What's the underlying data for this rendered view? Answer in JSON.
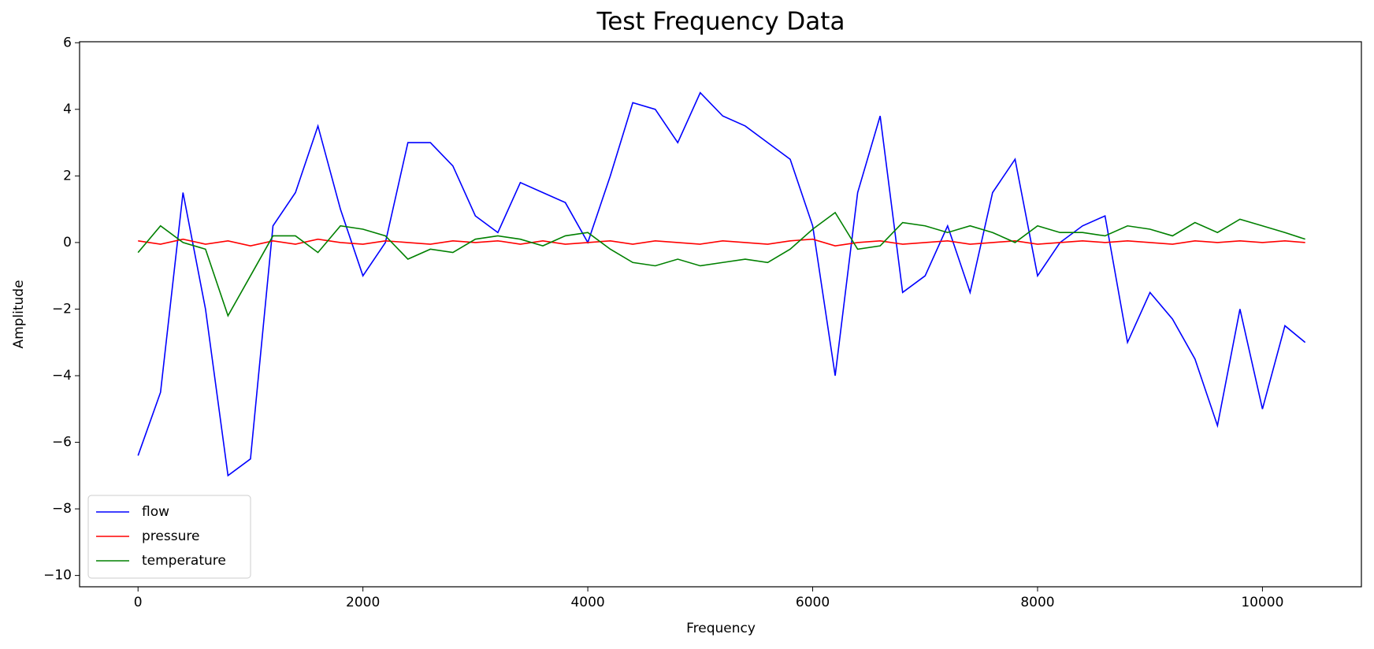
{
  "chart_data": {
    "type": "line",
    "title": "Test Frequency Data",
    "x_label": "Frequency",
    "y_label": "Amplitude",
    "x": [
      0,
      200,
      400,
      600,
      800,
      1000,
      1200,
      1400,
      1600,
      1800,
      2000,
      2200,
      2400,
      2600,
      2800,
      3000,
      3200,
      3400,
      3600,
      3800,
      4000,
      4200,
      4400,
      4600,
      4800,
      5000,
      5200,
      5400,
      5600,
      5800,
      6000,
      6200,
      6400,
      6600,
      6800,
      7000,
      7200,
      7400,
      7600,
      7800,
      8000,
      8200,
      8400,
      8600,
      8800,
      9000,
      9200,
      9400,
      9600,
      9800,
      10000,
      10200,
      10380
    ],
    "series": [
      {
        "name": "flow",
        "color": "#0000ff",
        "values": [
          -6.4,
          -4.5,
          1.5,
          -2,
          -7,
          -6.5,
          0.5,
          1.5,
          3.5,
          1,
          -1,
          0,
          3,
          3,
          2.3,
          0.8,
          0.3,
          1.8,
          1.5,
          1.2,
          0,
          2,
          4.2,
          4,
          3,
          4.5,
          3.8,
          3.5,
          3,
          2.5,
          0.5,
          -4,
          1.5,
          3.8,
          -1.5,
          -1,
          0.5,
          -1.5,
          1.5,
          2.5,
          -1,
          0,
          0.5,
          0.8,
          -3,
          -1.5,
          -2.3,
          -3.5,
          -5.5,
          -2,
          -5,
          -2.5,
          -3
        ]
      },
      {
        "name": "pressure",
        "color": "#ff0000",
        "values": [
          0.05,
          -0.05,
          0.1,
          -0.05,
          0.05,
          -0.1,
          0.05,
          -0.05,
          0.1,
          0,
          -0.05,
          0.05,
          0,
          -0.05,
          0.05,
          0,
          0.05,
          -0.05,
          0.05,
          -0.05,
          0,
          0.05,
          -0.05,
          0.05,
          0,
          -0.05,
          0.05,
          0,
          -0.05,
          0.05,
          0.1,
          -0.1,
          0,
          0.05,
          -0.05,
          0,
          0.05,
          -0.05,
          0,
          0.05,
          -0.05,
          0,
          0.05,
          0,
          0.05,
          0,
          -0.05,
          0.05,
          0,
          0.05,
          0,
          0.05,
          0
        ]
      },
      {
        "name": "temperature",
        "color": "#008000",
        "values": [
          -0.3,
          0.5,
          0,
          -0.2,
          -2.2,
          -1,
          0.2,
          0.2,
          -0.3,
          0.5,
          0.4,
          0.2,
          -0.5,
          -0.2,
          -0.3,
          0.1,
          0.2,
          0.1,
          -0.1,
          0.2,
          0.3,
          -0.2,
          -0.6,
          -0.7,
          -0.5,
          -0.7,
          -0.6,
          -0.5,
          -0.6,
          -0.2,
          0.4,
          0.9,
          -0.2,
          -0.1,
          0.6,
          0.5,
          0.3,
          0.5,
          0.3,
          0,
          0.5,
          0.3,
          0.3,
          0.2,
          0.5,
          0.4,
          0.2,
          0.6,
          0.3,
          0.7,
          0.5,
          0.3,
          0.1
        ]
      }
    ],
    "xlim": [
      -520,
      10880
    ],
    "ylim": [
      -10.34,
      6.03
    ],
    "xticks": [
      0,
      2000,
      4000,
      6000,
      8000,
      10000
    ],
    "yticks": [
      {
        "value": -10,
        "label": "−10"
      },
      {
        "value": -8,
        "label": "−8"
      },
      {
        "value": -6,
        "label": "−6"
      },
      {
        "value": -4,
        "label": "−4"
      },
      {
        "value": -2,
        "label": "−2"
      },
      0,
      2,
      4,
      6
    ],
    "legend": "lower left"
  }
}
